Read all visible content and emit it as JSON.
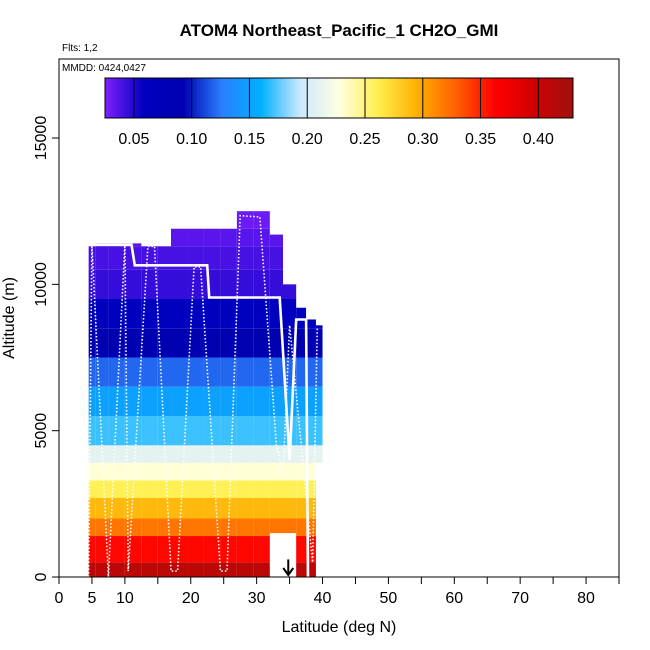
{
  "chart_data": {
    "type": "heatmap",
    "title": "ATOM4 Northeast_Pacific_1 CH2O_GMI",
    "subtitle_flights": "Flts: 1,2",
    "subtitle_dates": "MMDD: 0424,0427",
    "xlabel": "Latitude (deg N)",
    "ylabel": "Altitude (m)",
    "xlim": [
      0,
      85
    ],
    "ylim": [
      0,
      17700
    ],
    "x_ticks": [
      0,
      5,
      10,
      20,
      30,
      40,
      50,
      60,
      70,
      80
    ],
    "x_minor_ticks": [
      15,
      25,
      35,
      45,
      55,
      65,
      75,
      85
    ],
    "y_ticks": [
      0,
      5000,
      10000,
      15000
    ],
    "colorbar": {
      "min": 0.025,
      "max": 0.43,
      "ticks": [
        0.05,
        0.1,
        0.15,
        0.2,
        0.25,
        0.3,
        0.35,
        0.4
      ],
      "tick_labels": [
        "0.05",
        "0.10",
        "0.15",
        "0.20",
        "0.25",
        "0.30",
        "0.35",
        "0.40"
      ],
      "colors": [
        "#7f1fff",
        "#0000c0",
        "#0000b0",
        "#2a7fff",
        "#00b0ff",
        "#cce8ff",
        "#ffffe0",
        "#ffef50",
        "#ffb000",
        "#ff6000",
        "#ff0000",
        "#d00000",
        "#a01010"
      ]
    },
    "columns": [
      {
        "lat_min": 4.5,
        "lat_max": 5.5,
        "alt_min": 0,
        "alt_max": 11300
      },
      {
        "lat_min": 5.5,
        "lat_max": 7.5,
        "alt_min": 0,
        "alt_max": 11400
      },
      {
        "lat_min": 7.5,
        "lat_max": 10.0,
        "alt_min": 0,
        "alt_max": 11400
      },
      {
        "lat_min": 10.0,
        "lat_max": 12.5,
        "alt_min": 0,
        "alt_max": 11400
      },
      {
        "lat_min": 12.5,
        "lat_max": 15.0,
        "alt_min": 0,
        "alt_max": 11300
      },
      {
        "lat_min": 15.0,
        "lat_max": 17.0,
        "alt_min": 0,
        "alt_max": 11300
      },
      {
        "lat_min": 17.0,
        "lat_max": 19.5,
        "alt_min": 0,
        "alt_max": 11900
      },
      {
        "lat_min": 19.5,
        "lat_max": 22.0,
        "alt_min": 0,
        "alt_max": 11900
      },
      {
        "lat_min": 22.0,
        "lat_max": 24.5,
        "alt_min": 0,
        "alt_max": 11900
      },
      {
        "lat_min": 24.5,
        "lat_max": 27.0,
        "alt_min": 0,
        "alt_max": 11900
      },
      {
        "lat_min": 27.0,
        "lat_max": 29.5,
        "alt_min": 0,
        "alt_max": 12500
      },
      {
        "lat_min": 29.5,
        "lat_max": 32.0,
        "alt_min": 0,
        "alt_max": 12500
      },
      {
        "lat_min": 32.0,
        "lat_max": 34.0,
        "alt_min": 1500,
        "alt_max": 11700
      },
      {
        "lat_min": 34.0,
        "lat_max": 36.0,
        "alt_min": 1500,
        "alt_max": 10000
      },
      {
        "lat_min": 36.0,
        "lat_max": 37.5,
        "alt_min": 0,
        "alt_max": 9200
      },
      {
        "lat_min": 37.5,
        "lat_max": 39.0,
        "alt_min": 0,
        "alt_max": 8800
      },
      {
        "lat_min": 39.0,
        "lat_max": 40.0,
        "alt_min": 3900,
        "alt_max": 8600
      }
    ],
    "altitude_bands": [
      {
        "alt_min": 0,
        "alt_max": 500,
        "value": 0.41
      },
      {
        "alt_min": 500,
        "alt_max": 1400,
        "value": 0.36
      },
      {
        "alt_min": 1400,
        "alt_max": 2000,
        "value": 0.32
      },
      {
        "alt_min": 2000,
        "alt_max": 2700,
        "value": 0.29
      },
      {
        "alt_min": 2700,
        "alt_max": 3300,
        "value": 0.26
      },
      {
        "alt_min": 3300,
        "alt_max": 3900,
        "value": 0.23
      },
      {
        "alt_min": 3900,
        "alt_max": 4500,
        "value": 0.21
      },
      {
        "alt_min": 4500,
        "alt_max": 5500,
        "value": 0.17
      },
      {
        "alt_min": 5500,
        "alt_max": 6500,
        "value": 0.15
      },
      {
        "alt_min": 6500,
        "alt_max": 7500,
        "value": 0.12
      },
      {
        "alt_min": 7500,
        "alt_max": 8500,
        "value": 0.09
      },
      {
        "alt_min": 8500,
        "alt_max": 9500,
        "value": 0.06
      },
      {
        "alt_min": 9500,
        "alt_max": 10500,
        "value": 0.045
      },
      {
        "alt_min": 10500,
        "alt_max": 11300,
        "value": 0.04
      },
      {
        "alt_min": 11300,
        "alt_max": 11900,
        "value": 0.035
      },
      {
        "alt_min": 11900,
        "alt_max": 12500,
        "value": 0.03
      }
    ],
    "flight_track_solid": [
      {
        "x": 5.0,
        "y": 11350
      },
      {
        "x": 11.0,
        "y": 11350
      },
      {
        "x": 11.5,
        "y": 10650
      },
      {
        "x": 22.5,
        "y": 10650
      },
      {
        "x": 22.8,
        "y": 9550
      },
      {
        "x": 33.5,
        "y": 9550
      },
      {
        "x": 35.0,
        "y": 4000
      },
      {
        "x": 36.0,
        "y": 8800
      },
      {
        "x": 37.5,
        "y": 8800
      },
      {
        "x": 37.8,
        "y": 0
      }
    ],
    "flight_track_dotted": [
      {
        "x": 4.5,
        "y": 0
      },
      {
        "x": 5.0,
        "y": 11350
      },
      {
        "x": 7.5,
        "y": 0
      },
      {
        "x": 10.0,
        "y": 11400
      },
      {
        "x": 10.5,
        "y": 200
      },
      {
        "x": 13.5,
        "y": 11300
      },
      {
        "x": 14.5,
        "y": 11300
      },
      {
        "x": 17.0,
        "y": 200
      },
      {
        "x": 18.0,
        "y": 200
      },
      {
        "x": 20.5,
        "y": 10600
      },
      {
        "x": 21.5,
        "y": 10600
      },
      {
        "x": 24.5,
        "y": 200
      },
      {
        "x": 25.5,
        "y": 200
      },
      {
        "x": 27.5,
        "y": 12350
      },
      {
        "x": 30.5,
        "y": 12300
      },
      {
        "x": 33.0,
        "y": 4500
      },
      {
        "x": 34.0,
        "y": 3500
      },
      {
        "x": 35.0,
        "y": 8600
      },
      {
        "x": 38.5,
        "y": 500
      },
      {
        "x": 39.2,
        "y": 8500
      }
    ],
    "arrow": {
      "x": 34.8,
      "y_top": 600,
      "y_bottom": 0
    }
  }
}
